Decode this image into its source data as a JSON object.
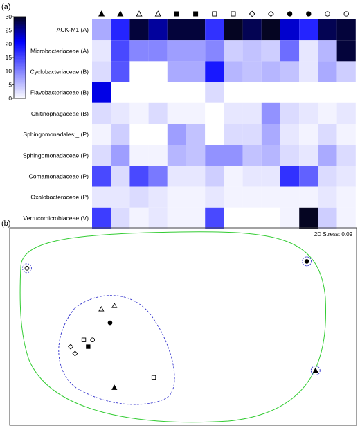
{
  "panels": {
    "a": "(a)",
    "b": "(b)"
  },
  "chart_data": [
    {
      "type": "heatmap",
      "rows": [
        "ACK-M1 (A)",
        "Microbacteriaceae (A)",
        "Cyclobacteriaceae (B)",
        "Flavobacteriaceae (B)",
        "Chitinophagaceae (B)",
        "Sphingomonadales;_ (P)",
        "Sphingomonadaceae (P)",
        "Comamonadaceae (P)",
        "Oxalobacteraceae (P)",
        "Verrucomicrobiaceae (V)"
      ],
      "column_markers": [
        "triangle-filled",
        "triangle-filled",
        "triangle-open",
        "triangle-open",
        "square-filled",
        "square-filled",
        "square-open",
        "square-open",
        "diamond-open",
        "diamond-open",
        "circle-filled",
        "circle-filled",
        "circle-open",
        "circle-open"
      ],
      "values": [
        [
          7,
          18,
          29,
          25,
          29,
          29,
          17,
          30,
          28,
          30,
          23,
          18,
          28,
          29
        ],
        [
          2,
          15,
          10,
          10,
          8,
          8,
          10,
          4,
          5,
          4,
          12,
          2,
          6,
          29
        ],
        [
          3,
          14,
          0,
          0,
          7,
          7,
          19,
          6,
          5,
          6,
          5,
          2,
          7,
          4
        ],
        [
          22,
          0,
          0,
          0,
          0,
          0,
          3,
          0,
          0,
          0,
          0,
          0,
          0,
          0
        ],
        [
          3,
          2,
          1,
          3,
          1,
          1,
          0,
          2,
          2,
          9,
          3,
          2,
          1,
          2
        ],
        [
          1,
          4,
          0,
          0,
          8,
          5,
          0,
          3,
          3,
          7,
          2,
          1,
          3,
          1
        ],
        [
          3,
          8,
          1,
          1,
          6,
          5,
          9,
          9,
          5,
          6,
          3,
          2,
          7,
          3
        ],
        [
          15,
          3,
          15,
          11,
          2,
          2,
          4,
          1,
          2,
          2,
          17,
          13,
          3,
          2
        ],
        [
          2,
          2,
          3,
          2,
          1,
          1,
          2,
          1,
          1,
          1,
          1,
          1,
          2,
          1
        ],
        [
          16,
          3,
          1,
          2,
          1,
          1,
          15,
          0,
          0,
          0,
          1,
          41,
          4,
          1
        ]
      ],
      "scale": {
        "min": 0,
        "max": 30,
        "ticks": [
          0,
          5,
          10,
          15,
          20,
          25,
          30
        ],
        "low_color": "#ffffff",
        "high_color": "#0000ff",
        "dark_color": "#050522"
      }
    },
    {
      "type": "scatter",
      "annotation": "2D Stress: 0.09",
      "points": [
        {
          "marker": "circle-open",
          "x": -1.7,
          "y": 1.2,
          "ringed": true
        },
        {
          "marker": "circle-filled",
          "x": 1.5,
          "y": 1.3,
          "ringed": true
        },
        {
          "marker": "triangle-open",
          "x": -0.85,
          "y": 0.6
        },
        {
          "marker": "triangle-open",
          "x": -0.7,
          "y": 0.65
        },
        {
          "marker": "circle-filled",
          "x": -0.75,
          "y": 0.4
        },
        {
          "marker": "square-open",
          "x": -1.05,
          "y": 0.15
        },
        {
          "marker": "circle-open",
          "x": -0.95,
          "y": 0.15
        },
        {
          "marker": "square-filled",
          "x": -1.0,
          "y": 0.05
        },
        {
          "marker": "diamond-open",
          "x": -1.2,
          "y": 0.05
        },
        {
          "marker": "diamond-open",
          "x": -1.15,
          "y": -0.05
        },
        {
          "marker": "triangle-filled",
          "x": -0.7,
          "y": -0.55
        },
        {
          "marker": "square-open",
          "x": -0.25,
          "y": -0.4
        },
        {
          "marker": "triangle-filled",
          "x": 1.6,
          "y": -0.3,
          "ringed": true
        }
      ],
      "xlim": [
        -1.85,
        1.95
      ],
      "ylim": [
        -1.0,
        1.7
      ],
      "outer_contour_color": "#33cc33",
      "inner_contour_color": "#3333cc"
    }
  ]
}
